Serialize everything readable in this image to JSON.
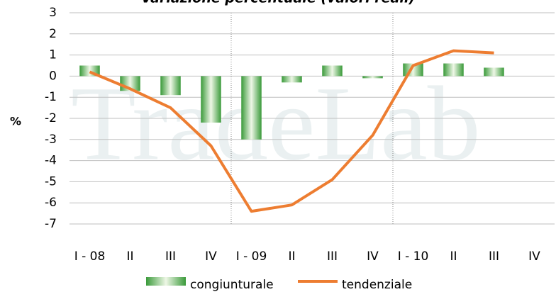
{
  "chart_data": {
    "type": "bar-line",
    "title": "Variazione percentuale (valori reali)",
    "ylabel": "%",
    "watermark": "TradeLab",
    "categories": [
      "I - 08",
      "II",
      "III",
      "IV",
      "I - 09",
      "II",
      "III",
      "IV",
      "I - 10",
      "II",
      "III",
      "IV"
    ],
    "series": [
      {
        "name": "congiunturale",
        "type": "bar",
        "color": "#3a9a3a",
        "values": [
          0.5,
          -0.7,
          -0.9,
          -2.2,
          -3.0,
          -0.3,
          0.5,
          -0.1,
          0.6,
          0.6,
          0.4,
          null
        ]
      },
      {
        "name": "tendenziale",
        "type": "line",
        "color": "#ed7d31",
        "values": [
          0.2,
          -0.6,
          -1.5,
          -3.3,
          -6.4,
          -6.1,
          -4.9,
          -2.8,
          0.5,
          1.2,
          1.1,
          null
        ]
      }
    ],
    "ylim": [
      -7,
      3
    ],
    "yticks": [
      -7,
      -6,
      -5,
      -4,
      -3,
      -2,
      -1,
      0,
      1,
      2,
      3
    ],
    "grid": true,
    "separators_after": [
      3,
      7
    ]
  }
}
